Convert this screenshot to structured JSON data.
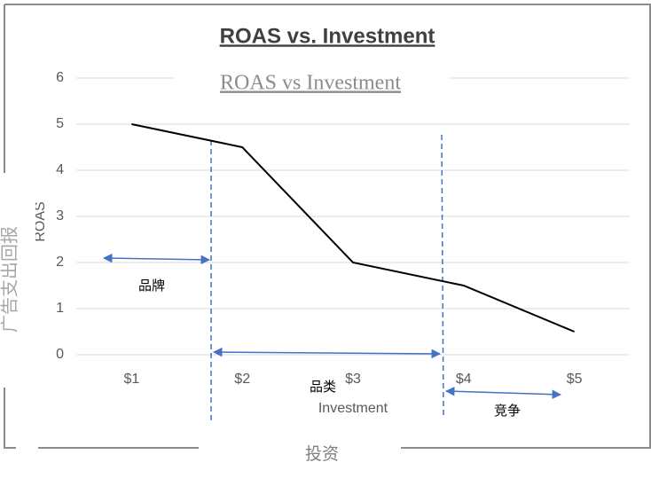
{
  "chart_data": {
    "type": "line",
    "title": "ROAS vs. Investment",
    "categories": [
      "$1",
      "$2",
      "$3",
      "$4",
      "$5"
    ],
    "series": [
      {
        "name": "ROAS",
        "color": "#000000",
        "values": [
          5,
          4.5,
          2,
          1.5,
          0.5
        ]
      }
    ],
    "ylim": [
      0,
      6
    ],
    "yticks": [
      0,
      1,
      2,
      3,
      4,
      5,
      6
    ],
    "grid": true,
    "x_label": "Investment",
    "y_label": "ROAS",
    "annotations": {
      "title_overlay": "ROAS vs Investment",
      "y_label_overlay": "广告支出回报",
      "x_label_overlay": "投资",
      "segments": [
        "品牌",
        "品类",
        "竞争"
      ]
    }
  }
}
